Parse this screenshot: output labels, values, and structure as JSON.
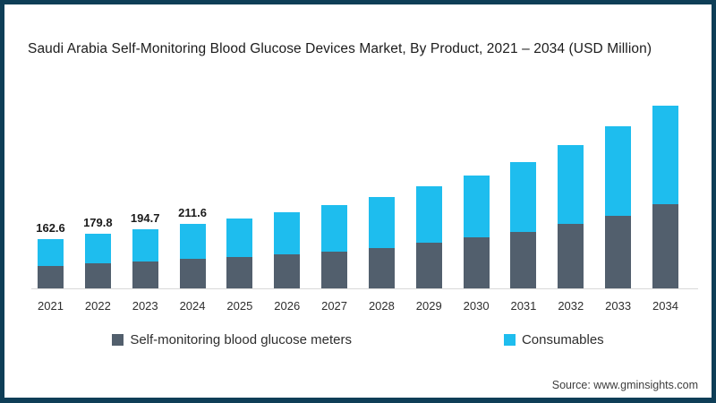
{
  "title": "Saudi Arabia Self-Monitoring Blood Glucose Devices Market, By Product, 2021 – 2034 (USD Million)",
  "source": "Source: www.gminsights.com",
  "colors": {
    "border": "#0E3E57",
    "axis_line": "#D9D9D9",
    "meters": "#525F6D",
    "consumables": "#1EBDEE",
    "title_text": "#1C1C1C",
    "label_text": "#1A1A1A"
  },
  "legend": [
    {
      "label": "Self-monitoring blood glucose meters",
      "color": "#525F6D"
    },
    {
      "label": "Consumables",
      "color": "#1EBDEE"
    }
  ],
  "chart_data": {
    "type": "bar",
    "stacked": true,
    "title": "Saudi Arabia Self-Monitoring Blood Glucose Devices Market, By Product, 2021 – 2034 (USD Million)",
    "unit": "USD Million",
    "xlabel": "",
    "ylabel": "",
    "gridlines": false,
    "y_axis_visible": false,
    "legend_position": "bottom",
    "categories": [
      "2021",
      "2022",
      "2023",
      "2024",
      "2025",
      "2026",
      "2027",
      "2028",
      "2029",
      "2030",
      "2031",
      "2032",
      "2033",
      "2034"
    ],
    "series": [
      {
        "name": "Self-monitoring blood glucose meters",
        "color": "#525F6D",
        "values": [
          74.0,
          81.2,
          89.0,
          95.9,
          102.5,
          112.0,
          121.4,
          133.2,
          149.0,
          168.0,
          185.2,
          211.7,
          239.0,
          276.0
        ]
      },
      {
        "name": "Consumables",
        "color": "#1EBDEE",
        "values": [
          88.6,
          98.6,
          105.7,
          115.7,
          125.5,
          138.0,
          151.6,
          166.8,
          186.0,
          203.0,
          229.8,
          259.6,
          292.0,
          324.0
        ]
      }
    ],
    "totals": [
      162.6,
      179.8,
      194.7,
      211.6,
      228.0,
      250.0,
      273.0,
      300.0,
      335.0,
      371.0,
      415.0,
      471.3,
      531.0,
      600.0
    ],
    "value_labels": [
      "162.6",
      "179.8",
      "194.7",
      "211.6",
      "",
      "",
      "",
      "",
      "",
      "",
      "",
      "",
      "",
      ""
    ]
  }
}
